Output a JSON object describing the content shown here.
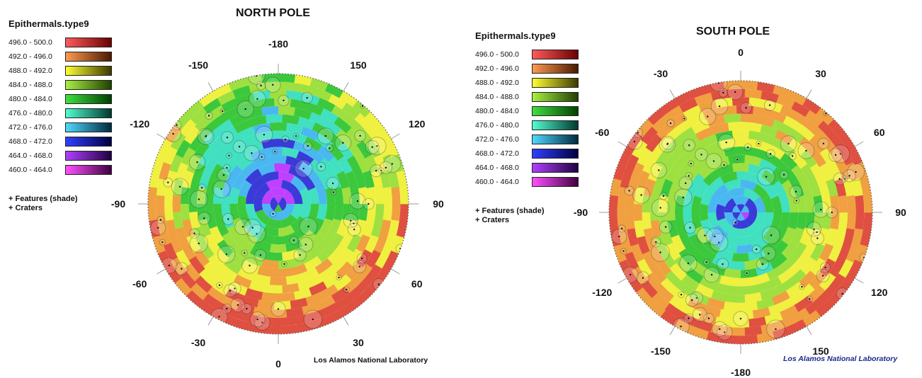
{
  "north": {
    "title": "NORTH POLE",
    "legend_title": "Epithermals.type9",
    "credit": "Los Alamos National Laboratory",
    "notes": [
      "+ Features (shade)",
      "+ Craters"
    ],
    "degree_labels": [
      "-180",
      "150",
      "120",
      "90",
      "60",
      "30",
      "0",
      "-30",
      "-60",
      "-90",
      "-120",
      "-150"
    ],
    "legend": [
      {
        "range": "496.0 - 500.0",
        "from": "#ff5a5a",
        "to": "#6a0000"
      },
      {
        "range": "492.0 - 496.0",
        "from": "#ff9a50",
        "to": "#4a1a00"
      },
      {
        "range": "488.0 - 492.0",
        "from": "#ffff30",
        "to": "#3c3a00"
      },
      {
        "range": "484.0 - 488.0",
        "from": "#a8f040",
        "to": "#204000"
      },
      {
        "range": "480.0 - 484.0",
        "from": "#40e040",
        "to": "#004000"
      },
      {
        "range": "476.0 - 480.0",
        "from": "#50ffd0",
        "to": "#003830"
      },
      {
        "range": "472.0 - 476.0",
        "from": "#50d8ff",
        "to": "#002a40"
      },
      {
        "range": "468.0 - 472.0",
        "from": "#3040ff",
        "to": "#000040"
      },
      {
        "range": "464.0 - 468.0",
        "from": "#b040ff",
        "to": "#200040"
      },
      {
        "range": "460.0 - 464.0",
        "from": "#ff50ff",
        "to": "#400040"
      }
    ]
  },
  "south": {
    "title": "SOUTH POLE",
    "legend_title": "Epithermals.type9",
    "credit": "Los Alamos National Laboratory",
    "notes": [
      "+ Features (shade)",
      "+ Craters"
    ],
    "degree_labels": [
      "0",
      "30",
      "60",
      "90",
      "120",
      "150",
      "-180",
      "-150",
      "-120",
      "-90",
      "-60",
      "-30"
    ],
    "legend": [
      {
        "range": "496.0 - 500.0",
        "from": "#ff5a5a",
        "to": "#6a0000"
      },
      {
        "range": "492.0 - 496.0",
        "from": "#ff9a50",
        "to": "#4a1a00"
      },
      {
        "range": "488.0 - 492.0",
        "from": "#ffff30",
        "to": "#3c3a00"
      },
      {
        "range": "484.0 - 488.0",
        "from": "#a8f040",
        "to": "#204000"
      },
      {
        "range": "480.0 - 484.0",
        "from": "#40e040",
        "to": "#004000"
      },
      {
        "range": "476.0 - 480.0",
        "from": "#50ffd0",
        "to": "#003830"
      },
      {
        "range": "472.0 - 476.0",
        "from": "#50d8ff",
        "to": "#002a40"
      },
      {
        "range": "468.0 - 472.0",
        "from": "#3040ff",
        "to": "#000040"
      },
      {
        "range": "464.0 - 468.0",
        "from": "#b040ff",
        "to": "#200040"
      },
      {
        "range": "460.0 - 464.0",
        "from": "#ff50ff",
        "to": "#400040"
      }
    ]
  },
  "colors": {
    "credit_north": "#111111",
    "credit_south": "#1a2a8c"
  }
}
